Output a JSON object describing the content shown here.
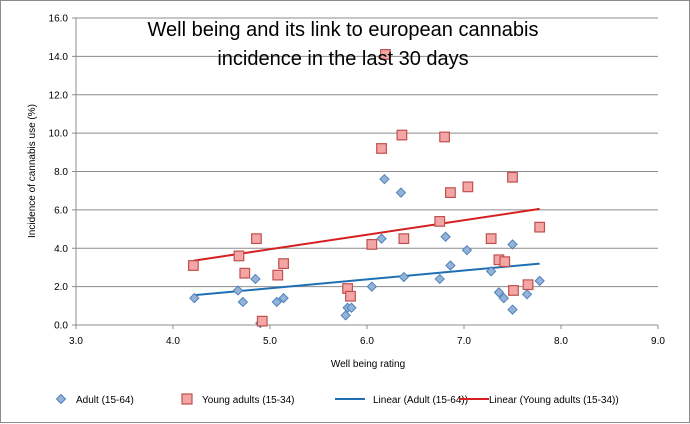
{
  "chart_data": {
    "type": "scatter",
    "title": "Well being and its link to european cannabis incidence in the last 30 days",
    "title_lines": [
      "Well being and its link to european cannabis",
      "incidence in the last 30 days"
    ],
    "xlabel": "Well being rating",
    "ylabel": "Incidence of cannabis  use (%)",
    "xlim": [
      3.0,
      9.0
    ],
    "ylim": [
      0.0,
      16.0
    ],
    "x_ticks": [
      "3.0",
      "4.0",
      "5.0",
      "6.0",
      "7.0",
      "8.0",
      "9.0"
    ],
    "y_ticks": [
      "0.0",
      "2.0",
      "4.0",
      "6.0",
      "8.0",
      "10.0",
      "12.0",
      "14.0",
      "16.0"
    ],
    "grid": "horizontal",
    "legend_position": "bottom",
    "series": [
      {
        "name": "Adult (15-64)",
        "kind": "points",
        "marker": "diamond",
        "color": "#95b3d7",
        "stroke": "#4f81bd",
        "points": [
          [
            4.22,
            1.4
          ],
          [
            4.67,
            1.8
          ],
          [
            4.72,
            1.2
          ],
          [
            4.85,
            2.4
          ],
          [
            4.9,
            0.1
          ],
          [
            5.07,
            1.2
          ],
          [
            5.14,
            1.4
          ],
          [
            5.78,
            0.5
          ],
          [
            5.8,
            0.9
          ],
          [
            5.84,
            0.9
          ],
          [
            6.05,
            2.0
          ],
          [
            6.15,
            4.5
          ],
          [
            6.18,
            7.6
          ],
          [
            6.35,
            6.9
          ],
          [
            6.38,
            2.5
          ],
          [
            6.75,
            2.4
          ],
          [
            6.81,
            4.6
          ],
          [
            6.86,
            3.1
          ],
          [
            7.03,
            3.9
          ],
          [
            7.28,
            2.8
          ],
          [
            7.36,
            1.7
          ],
          [
            7.41,
            1.4
          ],
          [
            7.5,
            4.2
          ],
          [
            7.5,
            0.8
          ],
          [
            7.65,
            1.6
          ],
          [
            7.78,
            2.3
          ]
        ]
      },
      {
        "name": "Young adults (15-34)",
        "kind": "points",
        "marker": "square",
        "color": "#f4a6a6",
        "stroke": "#c0504d",
        "points": [
          [
            4.21,
            3.1
          ],
          [
            4.68,
            3.6
          ],
          [
            4.74,
            2.7
          ],
          [
            4.86,
            4.5
          ],
          [
            4.92,
            0.2
          ],
          [
            5.08,
            2.6
          ],
          [
            5.14,
            3.2
          ],
          [
            5.8,
            1.9
          ],
          [
            5.83,
            1.5
          ],
          [
            6.05,
            4.2
          ],
          [
            6.15,
            9.2
          ],
          [
            6.19,
            14.1
          ],
          [
            6.36,
            9.9
          ],
          [
            6.38,
            4.5
          ],
          [
            6.75,
            5.4
          ],
          [
            6.8,
            9.8
          ],
          [
            6.86,
            6.9
          ],
          [
            7.04,
            7.2
          ],
          [
            7.28,
            4.5
          ],
          [
            7.36,
            3.4
          ],
          [
            7.42,
            3.3
          ],
          [
            7.5,
            7.7
          ],
          [
            7.51,
            1.8
          ],
          [
            7.66,
            2.1
          ],
          [
            7.78,
            5.1
          ]
        ]
      },
      {
        "name": "Linear (Adult (15-64))",
        "kind": "trendline",
        "color": "#1f6fb4",
        "points": [
          [
            4.21,
            1.55
          ],
          [
            7.78,
            3.2
          ]
        ]
      },
      {
        "name": "Linear (Young adults (15-34))",
        "kind": "trendline",
        "color": "#d62020",
        "points": [
          [
            4.21,
            3.35
          ],
          [
            7.78,
            6.05
          ]
        ]
      }
    ]
  }
}
